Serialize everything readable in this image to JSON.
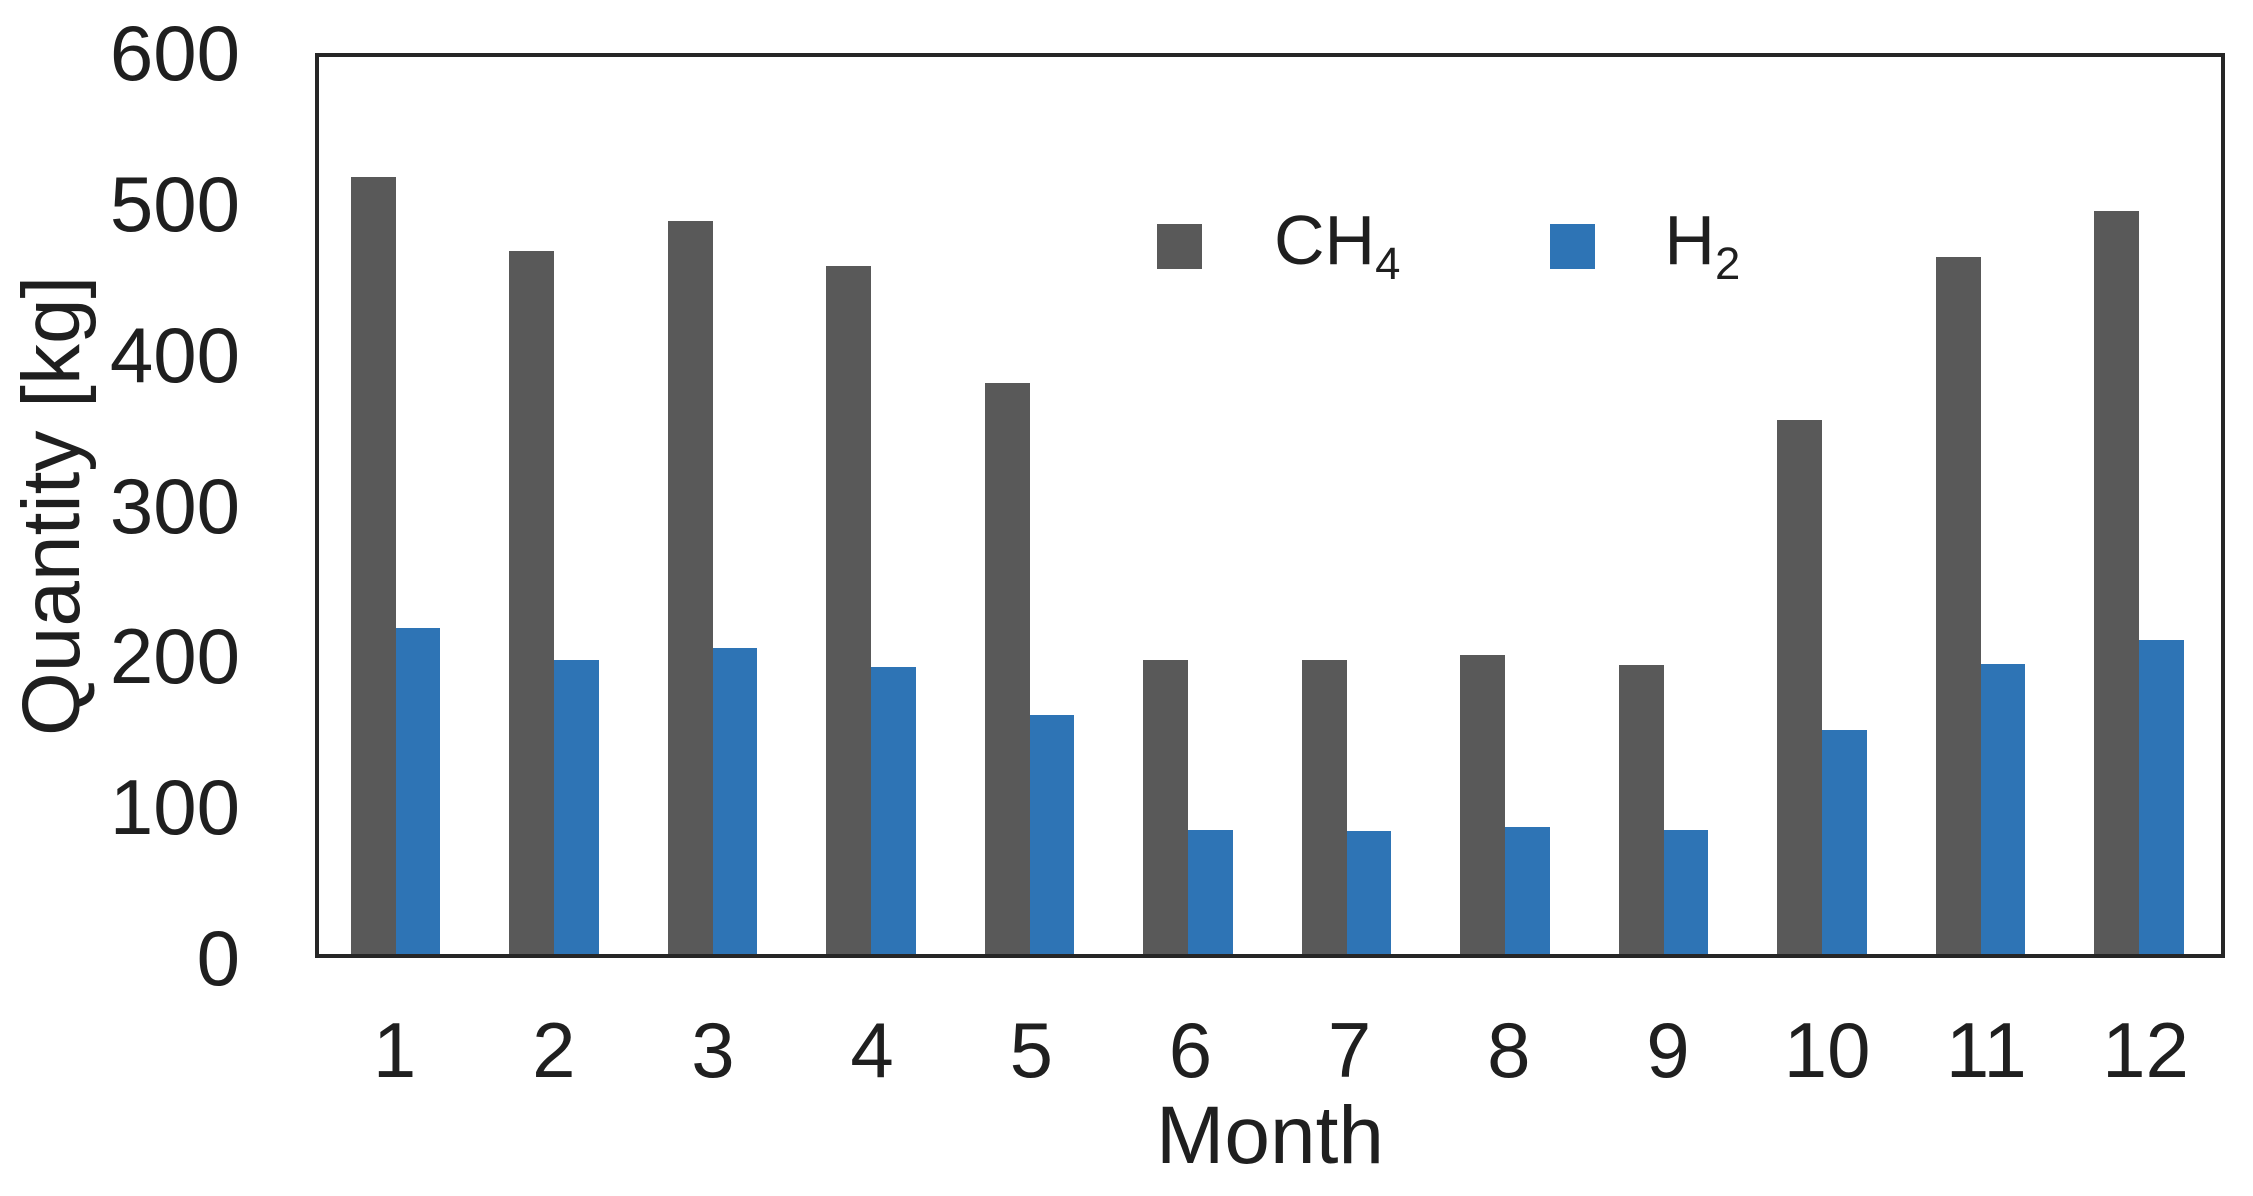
{
  "chart_data": {
    "type": "bar",
    "title": "",
    "categories": [
      "1",
      "2",
      "3",
      "4",
      "5",
      "6",
      "7",
      "8",
      "9",
      "10",
      "11",
      "12"
    ],
    "series": [
      {
        "name": "CH4",
        "label_base": "CH",
        "label_sub": "4",
        "color": "#595959",
        "values": [
          520,
          470,
          490,
          460,
          382,
          197,
          197,
          200,
          193,
          357,
          466,
          497
        ]
      },
      {
        "name": "H2",
        "label_base": "H",
        "label_sub": "2",
        "color": "#2e74b5",
        "values": [
          218,
          197,
          205,
          192,
          160,
          83,
          82,
          85,
          83,
          150,
          194,
          210
        ]
      }
    ],
    "xlabel": "Month",
    "ylabel": "Quantity [kg]",
    "ylim": [
      0,
      600
    ],
    "yticks": [
      600,
      500,
      400,
      300,
      200,
      100,
      0
    ],
    "grid": false,
    "legend_position": "inside-top-center",
    "frame_color": "#262626",
    "background_color": "#ffffff"
  }
}
